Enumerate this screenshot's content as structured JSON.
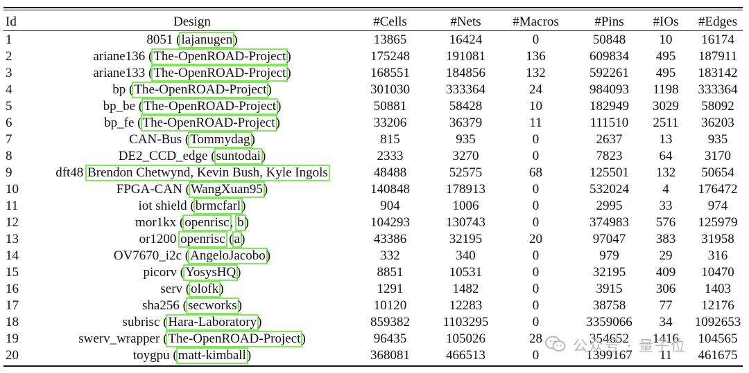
{
  "table": {
    "headers": [
      "Id",
      "Design",
      "#Cells",
      "#Nets",
      "#Macros",
      "#Pins",
      "#IOs",
      "#Edges"
    ],
    "rows": [
      {
        "id": "1",
        "name": "8051 (",
        "sources": [
          "lajanugen"
        ],
        "sep": [],
        "tail": ")",
        "cells": "13865",
        "nets": "16424",
        "macros": "0",
        "pins": "50848",
        "ios": "10",
        "edges": "16174"
      },
      {
        "id": "2",
        "name": "ariane136 (",
        "sources": [
          "The-OpenROAD-Project"
        ],
        "sep": [],
        "tail": ")",
        "cells": "175248",
        "nets": "191081",
        "macros": "136",
        "pins": "609834",
        "ios": "495",
        "edges": "187911"
      },
      {
        "id": "3",
        "name": "ariane133 (",
        "sources": [
          "The-OpenROAD-Project"
        ],
        "sep": [],
        "tail": ")",
        "cells": "168551",
        "nets": "184856",
        "macros": "132",
        "pins": "592261",
        "ios": "495",
        "edges": "183142"
      },
      {
        "id": "4",
        "name": "bp (",
        "sources": [
          "The-OpenROAD-Project"
        ],
        "sep": [],
        "tail": ")",
        "cells": "301030",
        "nets": "333364",
        "macros": "24",
        "pins": "984093",
        "ios": "1198",
        "edges": "333364"
      },
      {
        "id": "5",
        "name": "bp_be (",
        "sources": [
          "The-OpenROAD-Project"
        ],
        "sep": [],
        "tail": ")",
        "cells": "50881",
        "nets": "58428",
        "macros": "10",
        "pins": "182949",
        "ios": "3029",
        "edges": "58092"
      },
      {
        "id": "6",
        "name": "bp_fe (",
        "sources": [
          "The-OpenROAD-Project"
        ],
        "sep": [],
        "tail": ")",
        "cells": "33206",
        "nets": "36379",
        "macros": "11",
        "pins": "111510",
        "ios": "2511",
        "edges": "36203"
      },
      {
        "id": "7",
        "name": "CAN-Bus (",
        "sources": [
          "Tommydag"
        ],
        "sep": [],
        "tail": ")",
        "cells": "815",
        "nets": "935",
        "macros": "0",
        "pins": "2637",
        "ios": "13",
        "edges": "935"
      },
      {
        "id": "8",
        "name": "DE2_CCD_edge (",
        "sources": [
          "suntodai"
        ],
        "sep": [],
        "tail": ")",
        "cells": "2333",
        "nets": "3270",
        "macros": "0",
        "pins": "7823",
        "ios": "64",
        "edges": "3170"
      },
      {
        "id": "9",
        "name": "dft48 ",
        "sources": [
          "Brendon Chetwynd, Kevin Bush, Kyle Ingols"
        ],
        "sep": [],
        "tail": "",
        "cells": "48488",
        "nets": "52575",
        "macros": "68",
        "pins": "125501",
        "ios": "132",
        "edges": "50654"
      },
      {
        "id": "10",
        "name": "FPGA-CAN (",
        "sources": [
          "WangXuan95"
        ],
        "sep": [],
        "tail": ")",
        "cells": "140848",
        "nets": "178913",
        "macros": "0",
        "pins": "532024",
        "ios": "4",
        "edges": "176472"
      },
      {
        "id": "11",
        "name": "iot shield (",
        "sources": [
          "brmcfarl"
        ],
        "sep": [],
        "tail": ")",
        "cells": "904",
        "nets": "1006",
        "macros": "0",
        "pins": "2995",
        "ios": "33",
        "edges": "974"
      },
      {
        "id": "12",
        "name": "mor1kx (",
        "sources": [
          "openrisc",
          "b"
        ],
        "sep": [
          ", "
        ],
        "tail": ")",
        "cells": "104293",
        "nets": "130743",
        "macros": "0",
        "pins": "374983",
        "ios": "576",
        "edges": "125979"
      },
      {
        "id": "13",
        "name": "or1200 ",
        "sources": [
          "openrisc",
          "a"
        ],
        "sep": [
          " ("
        ],
        "tail": ")",
        "cells": "43386",
        "nets": "32195",
        "macros": "20",
        "pins": "97047",
        "ios": "383",
        "edges": "31958"
      },
      {
        "id": "14",
        "name": "OV7670_i2c (",
        "sources": [
          "AngeloJacobo"
        ],
        "sep": [],
        "tail": ")",
        "cells": "332",
        "nets": "340",
        "macros": "0",
        "pins": "979",
        "ios": "29",
        "edges": "316"
      },
      {
        "id": "15",
        "name": "picorv (",
        "sources": [
          "YosysHQ"
        ],
        "sep": [],
        "tail": ")",
        "cells": "8851",
        "nets": "10531",
        "macros": "0",
        "pins": "32195",
        "ios": "409",
        "edges": "10470"
      },
      {
        "id": "16",
        "name": "serv (",
        "sources": [
          "olofk"
        ],
        "sep": [],
        "tail": ")",
        "cells": "1291",
        "nets": "1482",
        "macros": "0",
        "pins": "3915",
        "ios": "306",
        "edges": "1403"
      },
      {
        "id": "17",
        "name": "sha256 (",
        "sources": [
          "secworks"
        ],
        "sep": [],
        "tail": ")",
        "cells": "10120",
        "nets": "12283",
        "macros": "0",
        "pins": "38758",
        "ios": "77",
        "edges": "12176"
      },
      {
        "id": "18",
        "name": "subrisc (",
        "sources": [
          "Hara-Laboratory"
        ],
        "sep": [],
        "tail": ")",
        "cells": "859382",
        "nets": "1103295",
        "macros": "0",
        "pins": "3359066",
        "ios": "34",
        "edges": "1092653"
      },
      {
        "id": "19",
        "name": "swerv_wrapper (",
        "sources": [
          "The-OpenROAD-Project"
        ],
        "sep": [],
        "tail": ")",
        "cells": "96435",
        "nets": "105026",
        "macros": "28",
        "pins": "354652",
        "ios": "1416",
        "edges": "104565"
      },
      {
        "id": "20",
        "name": "toygpu (",
        "sources": [
          "matt-kimball"
        ],
        "sep": [],
        "tail": ")",
        "cells": "368081",
        "nets": "466513",
        "macros": "0",
        "pins": "1399167",
        "ios": "11",
        "edges": "461675"
      }
    ]
  },
  "watermark": {
    "text": "公众号 · 量子位",
    "icon": "wechat-icon"
  },
  "colors": {
    "source_highlight": "#7ee85a",
    "watermark": "#b8b8b8",
    "text": "#111111"
  }
}
